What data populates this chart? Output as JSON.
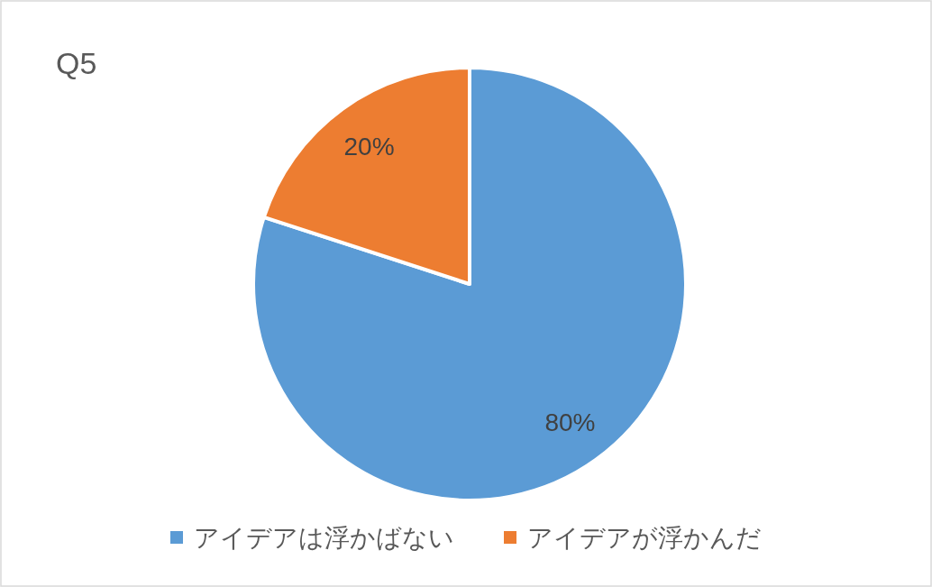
{
  "chart_data": {
    "type": "pie",
    "title": "Q5",
    "categories": [
      "アイデアは浮かばない",
      "アイデアが浮かんだ"
    ],
    "values": [
      80,
      20
    ],
    "colors": [
      "#5b9bd5",
      "#ed7d31"
    ],
    "value_labels": [
      "80%",
      "20%"
    ],
    "legend": "bottom"
  }
}
